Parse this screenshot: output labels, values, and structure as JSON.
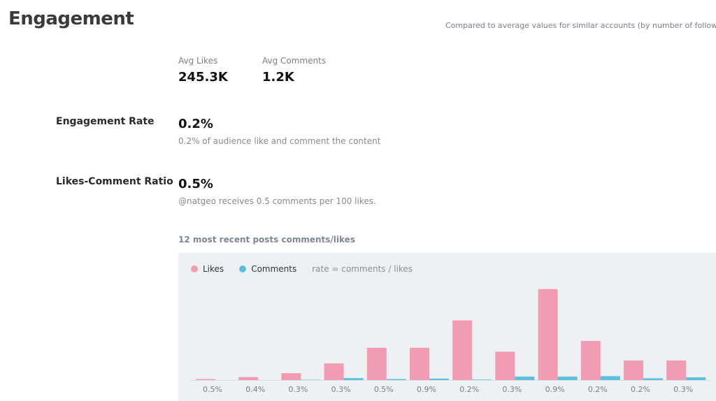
{
  "header": {
    "title": "Engagement",
    "comparison_note": "Compared to average values for similar accounts (by number of followers)"
  },
  "metrics": {
    "avg_likes": {
      "label": "Avg Likes",
      "value": "245.3K"
    },
    "avg_comments": {
      "label": "Avg Comments",
      "value": "1.2K"
    }
  },
  "engagement_rate": {
    "label": "Engagement Rate",
    "value": "0.2%",
    "description": "0.2% of audience like and comment the content"
  },
  "likes_comment_ratio": {
    "label": "Likes-Comment Ratio",
    "value": "0.5%",
    "description": "@natgeo receives 0.5 comments per 100 likes."
  },
  "chart_section": {
    "title": "12 most recent posts comments/likes",
    "legend": {
      "likes": "Likes",
      "comments": "Comments",
      "note": "rate = comments / likes"
    }
  },
  "colors": {
    "likes": "#f29cb3",
    "comments": "#5bbfe0",
    "panel": "#eef1f4"
  },
  "chart_data": {
    "type": "bar",
    "categories": [
      "0.5%",
      "0.4%",
      "0.3%",
      "0.3%",
      "0.5%",
      "0.9%",
      "0.2%",
      "0.3%",
      "0.9%",
      "0.2%",
      "0.2%",
      "0.3%"
    ],
    "series": [
      {
        "name": "Likes",
        "values": [
          1,
          3,
          7,
          17,
          33,
          33,
          61,
          29,
          93,
          40,
          20,
          20
        ]
      },
      {
        "name": "Comments",
        "values": [
          0,
          0,
          0.3,
          2,
          1,
          1.5,
          0.5,
          3.5,
          3.5,
          4,
          1.8,
          2.8
        ]
      }
    ],
    "ylim": [
      0,
      100
    ],
    "legend_position": "top-left",
    "grid": false
  }
}
